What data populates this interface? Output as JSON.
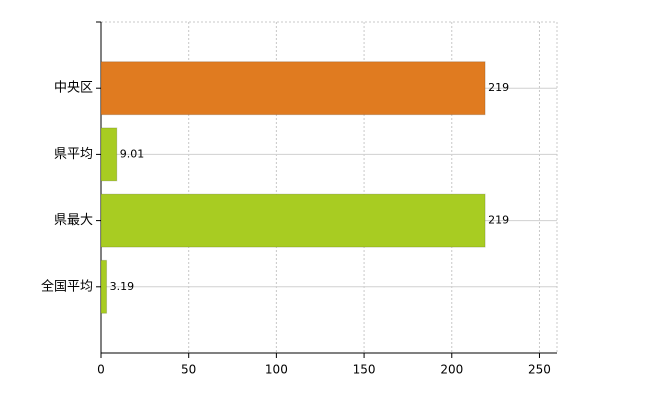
{
  "chart_data": {
    "type": "barh",
    "categories": [
      "中央区",
      "県平均",
      "県最大",
      "全国平均"
    ],
    "values": [
      219,
      9.01,
      219,
      3.19
    ],
    "colors": [
      "#e07b20",
      "#a8cc22",
      "#a8cc22",
      "#a8cc22"
    ],
    "xlim": [
      0,
      260
    ],
    "xticks": [
      0,
      50,
      100,
      150,
      200,
      250
    ],
    "grid": true
  }
}
